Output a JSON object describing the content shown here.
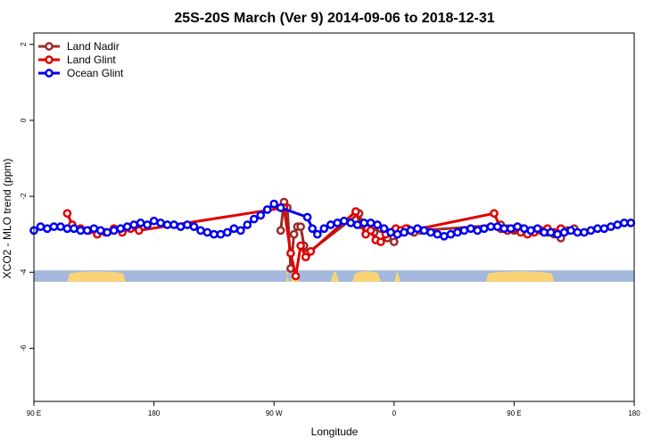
{
  "chart_data": {
    "type": "line",
    "title": "25S-20S March (Ver 9)   2014-09-06 to 2018-12-31",
    "xlabel": "Longitude",
    "ylabel": "XCO2 - MLO trend (ppm)",
    "xlim": [
      -180,
      180
    ],
    "ylim": [
      -7.4,
      2.3
    ],
    "x_ticks": [
      {
        "value": -180,
        "label": "90 E"
      },
      {
        "value": -108,
        "label": "180"
      },
      {
        "value": -36,
        "label": "90 W"
      },
      {
        "value": 36,
        "label": "0"
      },
      {
        "value": 108,
        "label": "90 E"
      },
      {
        "value": 180,
        "label": "180"
      }
    ],
    "y_ticks": [
      {
        "value": 2,
        "label": "2"
      },
      {
        "value": 0,
        "label": "0"
      },
      {
        "value": -2,
        "label": "-2"
      },
      {
        "value": -4,
        "label": "-4"
      },
      {
        "value": -6,
        "label": "-6"
      }
    ],
    "land_band": {
      "y_range": [
        -4.25,
        -3.95
      ],
      "ocean_color": "#a3b8dc",
      "land_color": "#f9d477",
      "land_segments": [
        [
          -160,
          -125
        ],
        [
          -29,
          -27
        ],
        [
          -26,
          -21
        ],
        [
          -2,
          3
        ],
        [
          11,
          28
        ],
        [
          36,
          40
        ],
        [
          91,
          132
        ]
      ]
    },
    "series": [
      {
        "name": "Land Nadir",
        "color": "#9b2b2b",
        "x": [
          -32,
          -30,
          -28,
          -26,
          -24,
          -22,
          -20,
          -18,
          -16,
          15,
          17,
          20,
          24,
          28,
          32,
          36,
          40,
          44,
          48,
          52,
          100,
          104,
          108,
          112,
          116,
          120,
          124,
          128,
          132,
          136,
          140,
          144
        ],
        "y": [
          -2.9,
          -2.15,
          -2.3,
          -3.9,
          -3.0,
          -2.8,
          -2.8,
          -3.3,
          -3.5,
          -2.45,
          -2.7,
          -2.85,
          -2.95,
          -2.85,
          -3.1,
          -3.2,
          -2.95,
          -2.85,
          -2.95,
          -2.9,
          -2.75,
          -2.85,
          -2.9,
          -2.85,
          -2.95,
          -2.9,
          -2.9,
          -2.95,
          -3.0,
          -3.1,
          -2.9,
          -2.85
        ]
      },
      {
        "name": "Land Glint",
        "color": "#e00000",
        "x": [
          -160,
          -157,
          -152,
          -147,
          -142,
          -137,
          -132,
          -127,
          -122,
          -117,
          -30,
          -26,
          -23,
          -20,
          -17,
          -14,
          13,
          16,
          19,
          22,
          25,
          28,
          31,
          34,
          37,
          40,
          43,
          46,
          96,
          100,
          104,
          108,
          112,
          116,
          120,
          124,
          128,
          132,
          136
        ],
        "y": [
          -2.45,
          -2.75,
          -2.85,
          -2.9,
          -3.0,
          -2.95,
          -2.85,
          -2.95,
          -2.85,
          -2.9,
          -2.3,
          -3.5,
          -4.1,
          -3.3,
          -3.6,
          -3.45,
          -2.4,
          -2.75,
          -3.0,
          -2.9,
          -3.15,
          -3.2,
          -3.0,
          -2.95,
          -2.85,
          -2.9,
          -2.85,
          -2.9,
          -2.45,
          -2.85,
          -2.9,
          -2.85,
          -2.95,
          -3.0,
          -2.95,
          -2.9,
          -2.85,
          -2.95,
          -2.85
        ]
      },
      {
        "name": "Ocean Glint",
        "color": "#0000ee",
        "x": [
          -180,
          -176,
          -172,
          -168,
          -164,
          -160,
          -156,
          -152,
          -148,
          -144,
          -140,
          -136,
          -132,
          -128,
          -124,
          -120,
          -116,
          -112,
          -108,
          -104,
          -100,
          -96,
          -92,
          -88,
          -84,
          -80,
          -76,
          -72,
          -68,
          -64,
          -60,
          -56,
          -52,
          -48,
          -44,
          -40,
          -36,
          -32,
          -16,
          -13,
          -10,
          -6,
          -2,
          2,
          6,
          10,
          14,
          18,
          22,
          26,
          30,
          34,
          38,
          42,
          46,
          50,
          54,
          58,
          62,
          66,
          70,
          74,
          78,
          82,
          86,
          90,
          94,
          98,
          102,
          106,
          110,
          114,
          118,
          122,
          126,
          130,
          134,
          138,
          142,
          146,
          150,
          154,
          158,
          162,
          166,
          170,
          174,
          178
        ],
        "y": [
          -2.9,
          -2.8,
          -2.85,
          -2.8,
          -2.8,
          -2.85,
          -2.85,
          -2.9,
          -2.9,
          -2.85,
          -2.9,
          -2.95,
          -2.9,
          -2.85,
          -2.8,
          -2.75,
          -2.7,
          -2.75,
          -2.65,
          -2.7,
          -2.75,
          -2.75,
          -2.8,
          -2.75,
          -2.8,
          -2.9,
          -2.95,
          -3.0,
          -3.0,
          -2.95,
          -2.85,
          -2.9,
          -2.75,
          -2.6,
          -2.5,
          -2.35,
          -2.2,
          -2.3,
          -2.55,
          -2.85,
          -3.0,
          -2.85,
          -2.75,
          -2.7,
          -2.65,
          -2.7,
          -2.75,
          -2.7,
          -2.7,
          -2.75,
          -2.85,
          -2.95,
          -3.0,
          -2.95,
          -2.9,
          -2.85,
          -2.9,
          -2.95,
          -3.0,
          -3.05,
          -3.0,
          -2.95,
          -2.9,
          -2.85,
          -2.9,
          -2.85,
          -2.8,
          -2.8,
          -2.85,
          -2.85,
          -2.8,
          -2.85,
          -2.9,
          -2.85,
          -2.95,
          -2.95,
          -3.0,
          -2.95,
          -2.9,
          -2.95,
          -2.95,
          -2.9,
          -2.85,
          -2.85,
          -2.8,
          -2.75,
          -2.7,
          -2.7
        ]
      }
    ],
    "legend": {
      "location": "top-left"
    },
    "grid": false
  }
}
